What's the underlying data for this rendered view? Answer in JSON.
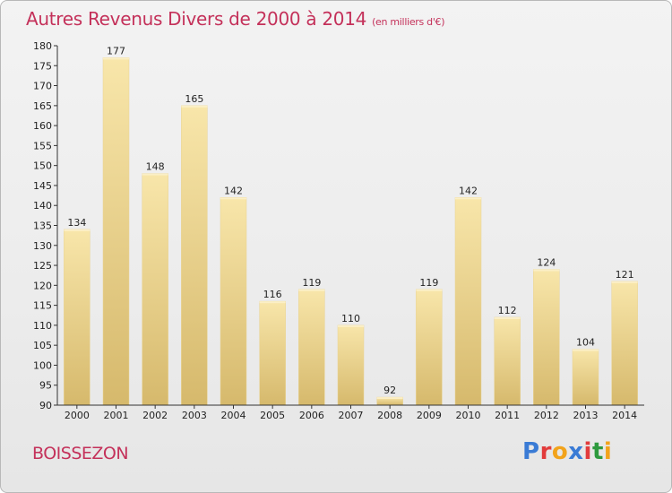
{
  "header": {
    "title": "Autres Revenus Divers de 2000 à 2014",
    "subtitle": "(en milliers d'€)"
  },
  "footer": {
    "commune": "BOISSEZON",
    "brand_letters": [
      "P",
      "r",
      "o",
      "x",
      "i",
      "t",
      "i"
    ],
    "brand_colors": [
      "#3a7bd5",
      "#e23c3c",
      "#f2a31b",
      "#3a7bd5",
      "#e23c3c",
      "#2e9a3e",
      "#f2a31b"
    ]
  },
  "colors": {
    "bar_light": "#f7e3a4",
    "bar_dark": "#d8bc70",
    "axis": "#333333",
    "title": "#c4315a"
  },
  "chart_data": {
    "type": "bar",
    "title": "Autres Revenus Divers de 2000 à 2014",
    "categories": [
      "2000",
      "2001",
      "2002",
      "2003",
      "2004",
      "2005",
      "2006",
      "2007",
      "2008",
      "2009",
      "2010",
      "2011",
      "2012",
      "2013",
      "2014"
    ],
    "values": [
      134,
      177,
      148,
      165,
      142,
      116,
      119,
      110,
      92,
      119,
      142,
      112,
      124,
      104,
      121
    ],
    "ylim": [
      90,
      180
    ],
    "yticks": [
      90,
      95,
      100,
      105,
      110,
      115,
      120,
      125,
      130,
      135,
      140,
      145,
      150,
      155,
      160,
      165,
      170,
      175,
      180
    ],
    "xlabel": "",
    "ylabel": "",
    "grid": false,
    "legend": "none"
  }
}
